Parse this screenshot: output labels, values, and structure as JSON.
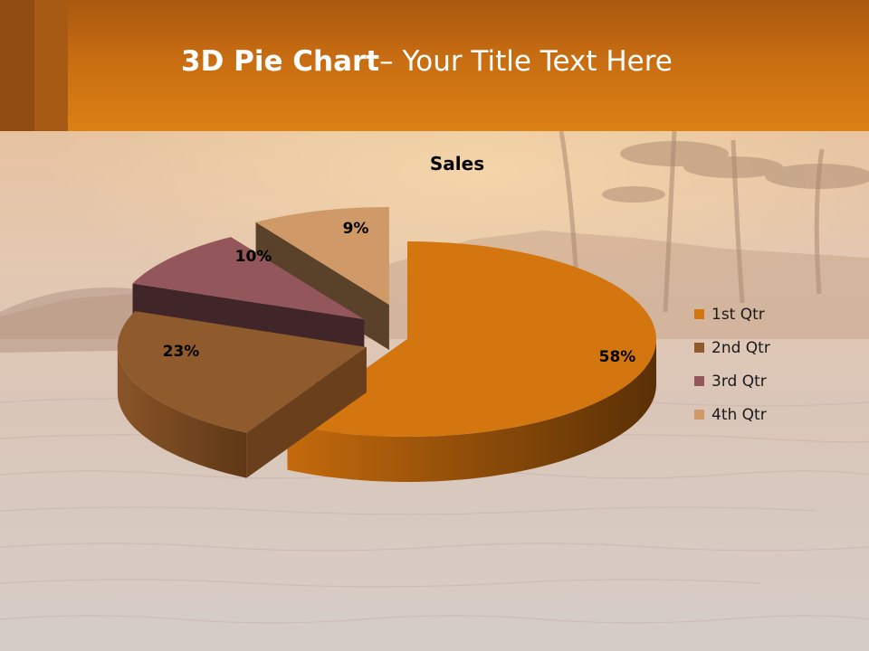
{
  "slide": {
    "title_bold": "3D Pie Chart",
    "title_rest": "– Your Title Text Here"
  },
  "chart_data": {
    "type": "pie",
    "title": "Sales",
    "categories": [
      "1st Qtr",
      "2nd Qtr",
      "3rd Qtr",
      "4th Qtr"
    ],
    "values": [
      58,
      23,
      10,
      9
    ],
    "labels": [
      "58%",
      "23%",
      "10%",
      "9%"
    ],
    "legend": "right",
    "colors": [
      "#d3760f",
      "#8f5a2c",
      "#93565a",
      "#d09a68"
    ],
    "side_colors": [
      "#8a4a08",
      "#6a3f1c",
      "#402629",
      "#5a412a"
    ]
  }
}
